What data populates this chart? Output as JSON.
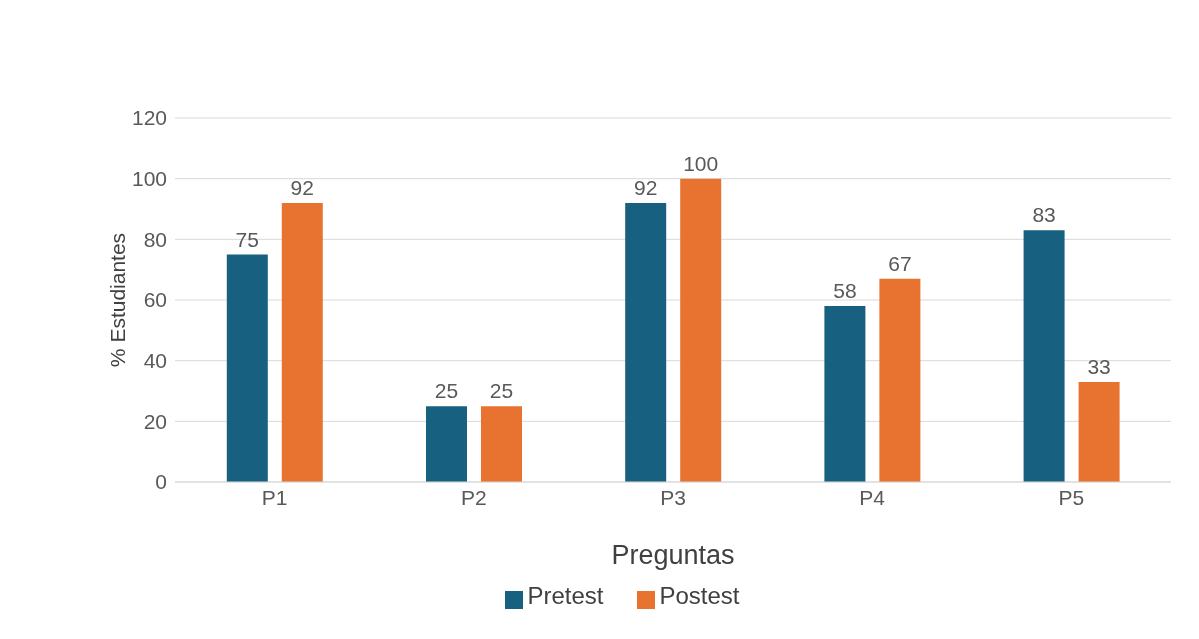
{
  "chart_data": {
    "type": "bar",
    "xlabel": "Preguntas",
    "ylabel": "% Estudiantes",
    "categories": [
      "P1",
      "P2",
      "P3",
      "P4",
      "P5"
    ],
    "series": [
      {
        "name": "Pretest",
        "color": "#17607f",
        "values": [
          75,
          25,
          92,
          58,
          83
        ]
      },
      {
        "name": "Postest",
        "color": "#e87331",
        "values": [
          92,
          25,
          100,
          67,
          33
        ]
      }
    ],
    "ylim": [
      0,
      120
    ],
    "yticks": [
      0,
      20,
      40,
      60,
      80,
      100,
      120
    ],
    "grid": "y",
    "legend": "bottom",
    "data_labels": true
  }
}
